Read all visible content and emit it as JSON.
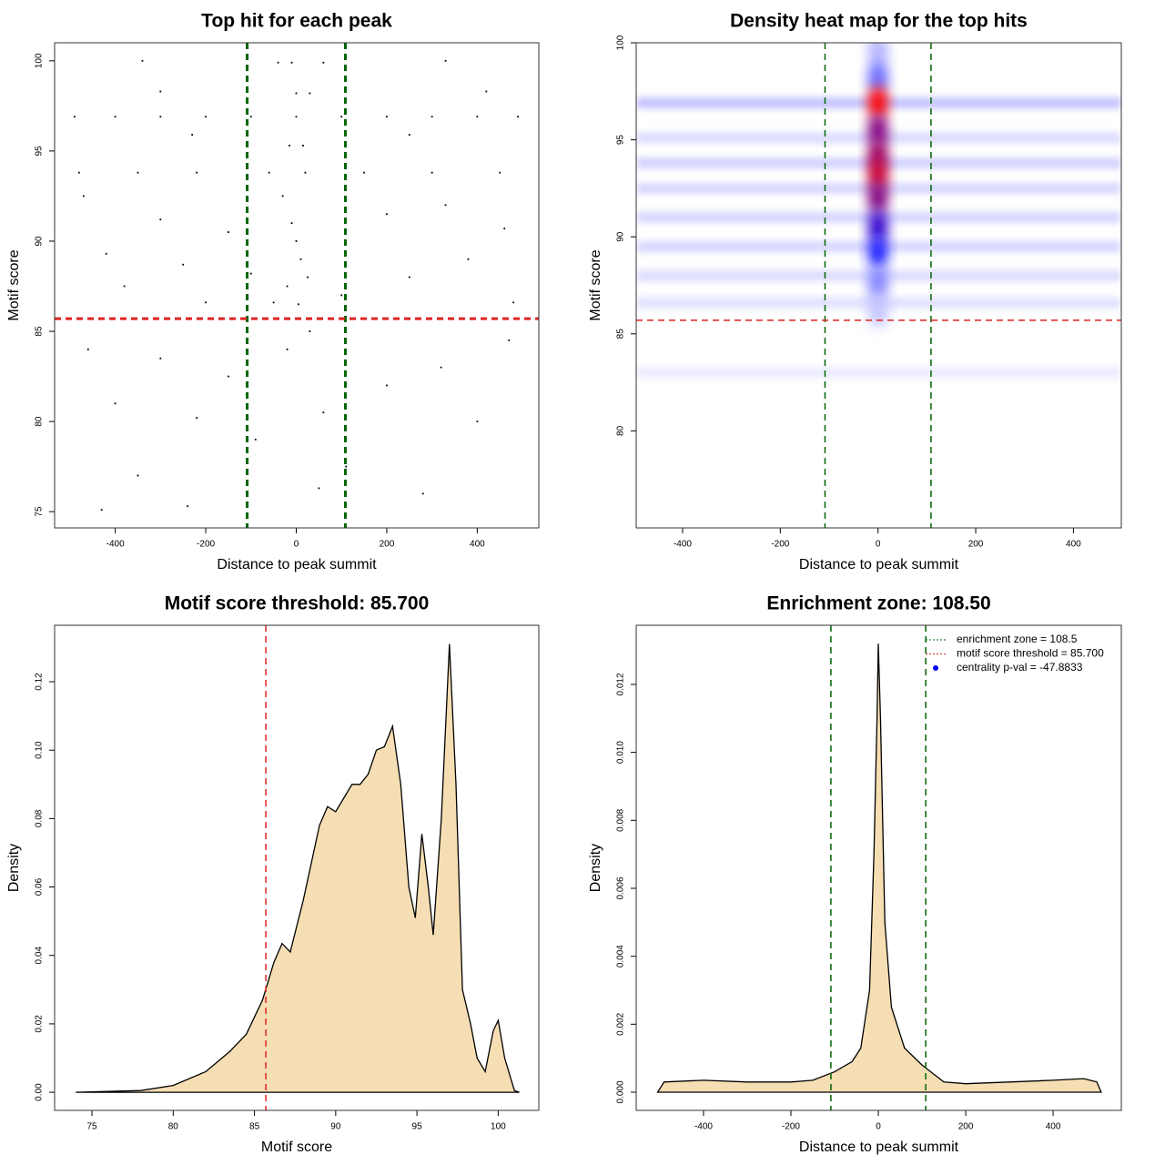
{
  "chart_data": [
    {
      "type": "scatter",
      "title": "Top hit for each peak",
      "xlabel": "Distance to peak summit",
      "ylabel": "Motif score",
      "xlim": [
        -534,
        536
      ],
      "ylim": [
        74.1,
        101.0
      ],
      "xticks": [
        -400,
        -200,
        0,
        200,
        400
      ],
      "yticks": [
        75,
        80,
        85,
        90,
        95,
        100
      ],
      "color": "#000000",
      "line_width": 3,
      "vlines": [
        {
          "value": -108.5,
          "color": "#006400"
        },
        {
          "value": 108.5,
          "color": "#006400"
        }
      ],
      "hlines": [
        {
          "value": 85.7,
          "color": "#dd2222"
        }
      ],
      "x": [
        -490,
        -400,
        -300,
        -200,
        -100,
        0,
        100,
        200,
        300,
        400,
        490,
        -480,
        -350,
        -220,
        -60,
        20,
        150,
        300,
        450,
        -470,
        -300,
        -150,
        -420,
        -250,
        -100,
        -380,
        -200,
        -50,
        100,
        250,
        380,
        460,
        330,
        200,
        480,
        -30,
        -10,
        0,
        10,
        25,
        -20,
        5,
        15,
        -15,
        0,
        30,
        -40,
        60,
        -10,
        -460,
        -300,
        -150,
        -400,
        -220,
        -90,
        60,
        200,
        320,
        470,
        400,
        -430,
        -240,
        50,
        280,
        -350,
        110,
        -340,
        330,
        -300,
        420,
        -230,
        250,
        -20,
        30
      ],
      "values": [
        96.9,
        96.9,
        96.9,
        96.9,
        96.9,
        96.9,
        96.9,
        96.9,
        96.9,
        96.9,
        96.9,
        93.8,
        93.8,
        93.8,
        93.8,
        93.8,
        93.8,
        93.8,
        93.8,
        92.5,
        91.2,
        90.5,
        89.3,
        88.7,
        88.2,
        87.5,
        86.6,
        86.6,
        87.0,
        88.0,
        89.0,
        90.7,
        92.0,
        91.5,
        86.6,
        92.5,
        91,
        90,
        89,
        88,
        87.5,
        86.5,
        95.3,
        95.3,
        98.2,
        98.2,
        99.9,
        99.9,
        99.9,
        84,
        83.5,
        82.5,
        81,
        80.2,
        79,
        80.5,
        82,
        83,
        84.5,
        80,
        75.1,
        75.3,
        76.3,
        76,
        77,
        77.5,
        100,
        100,
        98.3,
        98.3,
        95.9,
        95.9,
        84,
        85
      ]
    },
    {
      "type": "heatmap",
      "title": "Density heat map for the top hits",
      "xlabel": "Distance to peak summit",
      "ylabel": "Motif score",
      "xlim": [
        -495,
        498
      ],
      "ylim": [
        75,
        100
      ],
      "xticks": [
        -400,
        -200,
        0,
        200,
        400
      ],
      "yticks": [
        80,
        85,
        90,
        95,
        100
      ],
      "colors": [
        "#ffffff",
        "#0000ff",
        "#ff0000"
      ],
      "line_width": 1.5,
      "vlines": [
        {
          "value": -108.5,
          "color": "#006400"
        },
        {
          "value": 108.5,
          "color": "#006400"
        }
      ],
      "hlines": [
        {
          "value": 85.7,
          "color": "#dd2222"
        }
      ],
      "hotspots": {
        "x": [
          0,
          0,
          0,
          0,
          0,
          0,
          0,
          0,
          0,
          0,
          0
        ],
        "y": [
          99.6,
          98.2,
          96.9,
          95.5,
          94.2,
          93.2,
          92.0,
          90.5,
          89.2,
          87.6,
          86.2
        ],
        "z": [
          0.15,
          0.3,
          1.0,
          0.75,
          0.8,
          0.9,
          0.75,
          0.6,
          0.45,
          0.25,
          0.12
        ]
      },
      "bands": {
        "y": [
          96.9,
          95.1,
          93.8,
          92.5,
          91.0,
          89.5,
          88.0,
          86.6,
          83.0
        ],
        "z": [
          0.12,
          0.07,
          0.09,
          0.08,
          0.08,
          0.08,
          0.07,
          0.06,
          0.04
        ]
      }
    },
    {
      "type": "area",
      "title": "Motif score threshold: 85.700",
      "xlabel": "Motif score",
      "ylabel": "Density",
      "xlim": [
        72.7,
        102.5
      ],
      "ylim": [
        -0.0053,
        0.1365
      ],
      "xticks": [
        75,
        80,
        85,
        90,
        95,
        100
      ],
      "yticks": [
        {
          "value": 0,
          "label": "0.00"
        },
        {
          "value": 0.02,
          "label": "0.02"
        },
        {
          "value": 0.04,
          "label": "0.04"
        },
        {
          "value": 0.06,
          "label": "0.06"
        },
        {
          "value": 0.08,
          "label": "0.08"
        },
        {
          "value": 0.1,
          "label": "0.10"
        },
        {
          "value": 0.12,
          "label": "0.12"
        }
      ],
      "color": "#f5deb3",
      "line_width": 1.5,
      "vlines": [
        {
          "value": 85.7,
          "color": "#dd2222"
        }
      ],
      "hlines": [],
      "x": [
        74,
        78,
        80,
        82,
        83.5,
        84.5,
        85.5,
        86.2,
        86.7,
        87.2,
        88,
        89,
        89.5,
        90,
        91,
        91.5,
        92,
        92.5,
        93,
        93.5,
        94,
        94.5,
        94.9,
        95.3,
        95.7,
        96,
        96.5,
        97,
        97.4,
        97.8,
        98.3,
        98.7,
        99.2,
        99.7,
        100,
        100.4,
        101,
        101.3
      ],
      "values": [
        0,
        0.0005,
        0.002,
        0.006,
        0.012,
        0.017,
        0.027,
        0.038,
        0.0435,
        0.041,
        0.056,
        0.078,
        0.0835,
        0.082,
        0.09,
        0.09,
        0.093,
        0.1,
        0.101,
        0.107,
        0.09,
        0.06,
        0.051,
        0.0755,
        0.06,
        0.046,
        0.08,
        0.131,
        0.09,
        0.03,
        0.02,
        0.01,
        0.006,
        0.018,
        0.021,
        0.01,
        0.0005,
        0
      ]
    },
    {
      "type": "area",
      "title": "Enrichment zone: 108.50",
      "xlabel": "Distance to peak summit",
      "ylabel": "Density",
      "xlim": [
        -554,
        556
      ],
      "ylim": [
        -0.000536,
        0.01374
      ],
      "xticks": [
        -400,
        -200,
        0,
        200,
        400
      ],
      "yticks": [
        {
          "value": 0,
          "label": "0.000"
        },
        {
          "value": 0.002,
          "label": "0.002"
        },
        {
          "value": 0.004,
          "label": "0.004"
        },
        {
          "value": 0.006,
          "label": "0.006"
        },
        {
          "value": 0.008,
          "label": "0.008"
        },
        {
          "value": 0.01,
          "label": "0.010"
        },
        {
          "value": 0.012,
          "label": "0.012"
        }
      ],
      "color": "#f5deb3",
      "line_width": 1.5,
      "vlines": [
        {
          "value": -108.5,
          "color": "#006400"
        },
        {
          "value": 108.5,
          "color": "#006400"
        }
      ],
      "hlines": [],
      "x": [
        -505,
        -490,
        -400,
        -300,
        -200,
        -150,
        -100,
        -60,
        -40,
        -20,
        -10,
        -3,
        0,
        5,
        15,
        30,
        60,
        100,
        150,
        200,
        300,
        400,
        470,
        500,
        510
      ],
      "values": [
        0,
        0.0003,
        0.00035,
        0.0003,
        0.0003,
        0.00035,
        0.0006,
        0.0009,
        0.0013,
        0.003,
        0.007,
        0.011,
        0.0132,
        0.011,
        0.005,
        0.0025,
        0.0013,
        0.0008,
        0.0003,
        0.00025,
        0.0003,
        0.00035,
        0.0004,
        0.0003,
        0
      ],
      "legend": {
        "position": "topright",
        "items": [
          {
            "label": "enrichment zone = 108.5",
            "color": "#006400",
            "symbol": "line"
          },
          {
            "label": "motif score threshold = 85.700",
            "color": "#dd2222",
            "symbol": "line"
          },
          {
            "label": "centrality p-val = -47.8833",
            "color": "#0000ff",
            "symbol": "point"
          }
        ]
      }
    }
  ]
}
